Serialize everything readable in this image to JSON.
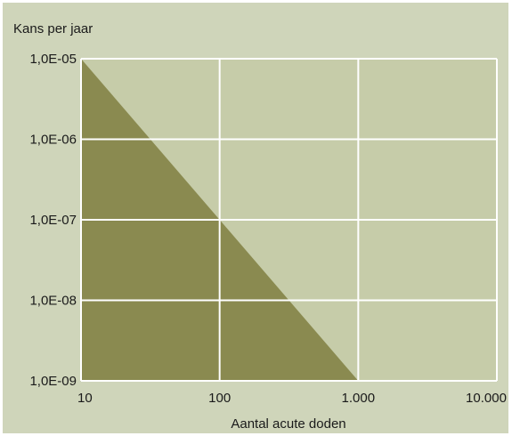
{
  "chart_data": {
    "type": "area",
    "title": "",
    "ylabel": "Kans per jaar",
    "xlabel": "Aantal acute doden",
    "x_scale": "log",
    "y_scale": "log",
    "xlim": [
      10,
      10000
    ],
    "ylim": [
      1e-09,
      1e-05
    ],
    "x_ticks": [
      10,
      100,
      1000,
      10000
    ],
    "x_tick_labels": [
      "10",
      "100",
      "1.000",
      "10.000"
    ],
    "y_ticks": [
      1e-05,
      1e-06,
      1e-07,
      1e-08,
      1e-09
    ],
    "y_tick_labels": [
      "1,0E-05",
      "1,0E-06",
      "1,0E-07",
      "1,0E-08",
      "1,0E-09"
    ],
    "grid": true,
    "series": [
      {
        "x": [
          10,
          100,
          1000
        ],
        "y": [
          1e-05,
          1e-07,
          1e-09
        ],
        "fill": "below"
      }
    ],
    "colors": {
      "background": "#cfd5ba",
      "plot_background": "#c6cca9",
      "area": "#8a8a50",
      "grid": "#ffffff"
    }
  }
}
